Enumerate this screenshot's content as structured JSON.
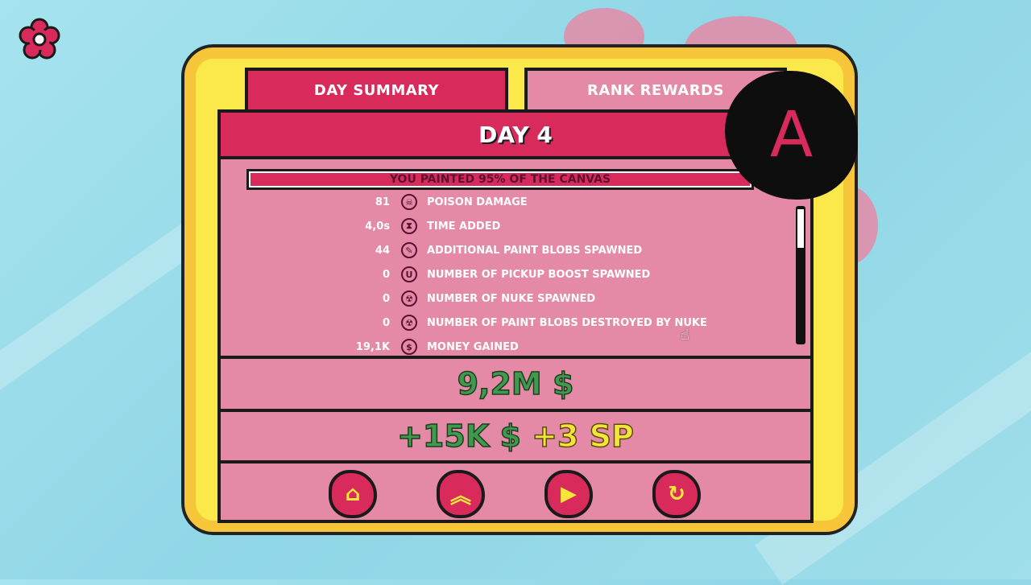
{
  "tabs": [
    {
      "label": "DAY SUMMARY",
      "active": true
    },
    {
      "label": "RANK REWARDS",
      "active": false
    }
  ],
  "header": {
    "title": "DAY 4"
  },
  "banner": "YOU PAINTED 95% OF THE CANVAS",
  "grade": "A",
  "stats": [
    {
      "value": "81",
      "icon": "poison-icon",
      "label": "POISON DAMAGE"
    },
    {
      "value": "4,0s",
      "icon": "hourglass-icon",
      "label": "TIME ADDED"
    },
    {
      "value": "44",
      "icon": "paint-blob-icon",
      "label": "ADDITIONAL PAINT BLOBS SPAWNED"
    },
    {
      "value": "0",
      "icon": "magnet-icon",
      "label": "NUMBER OF PICKUP BOOST SPAWNED"
    },
    {
      "value": "0",
      "icon": "nuke-icon",
      "label": "NUMBER OF NUKE SPAWNED"
    },
    {
      "value": "0",
      "icon": "radiation-icon",
      "label": "NUMBER OF PAINT BLOBS DESTROYED BY NUKE"
    },
    {
      "value": "19,1K",
      "icon": "dollar-icon",
      "label": "MONEY GAINED"
    }
  ],
  "total_money": "9,2M $",
  "reward": {
    "money": "+15K $",
    "sp": "+3 SP"
  },
  "buttons": [
    "home",
    "upgrade",
    "play",
    "restart"
  ],
  "colors": {
    "accent": "#d92a5c",
    "panel": "#e58aa6",
    "money": "#3f9a4e",
    "sp": "#f5e43a",
    "frame": "#fbe84a"
  }
}
